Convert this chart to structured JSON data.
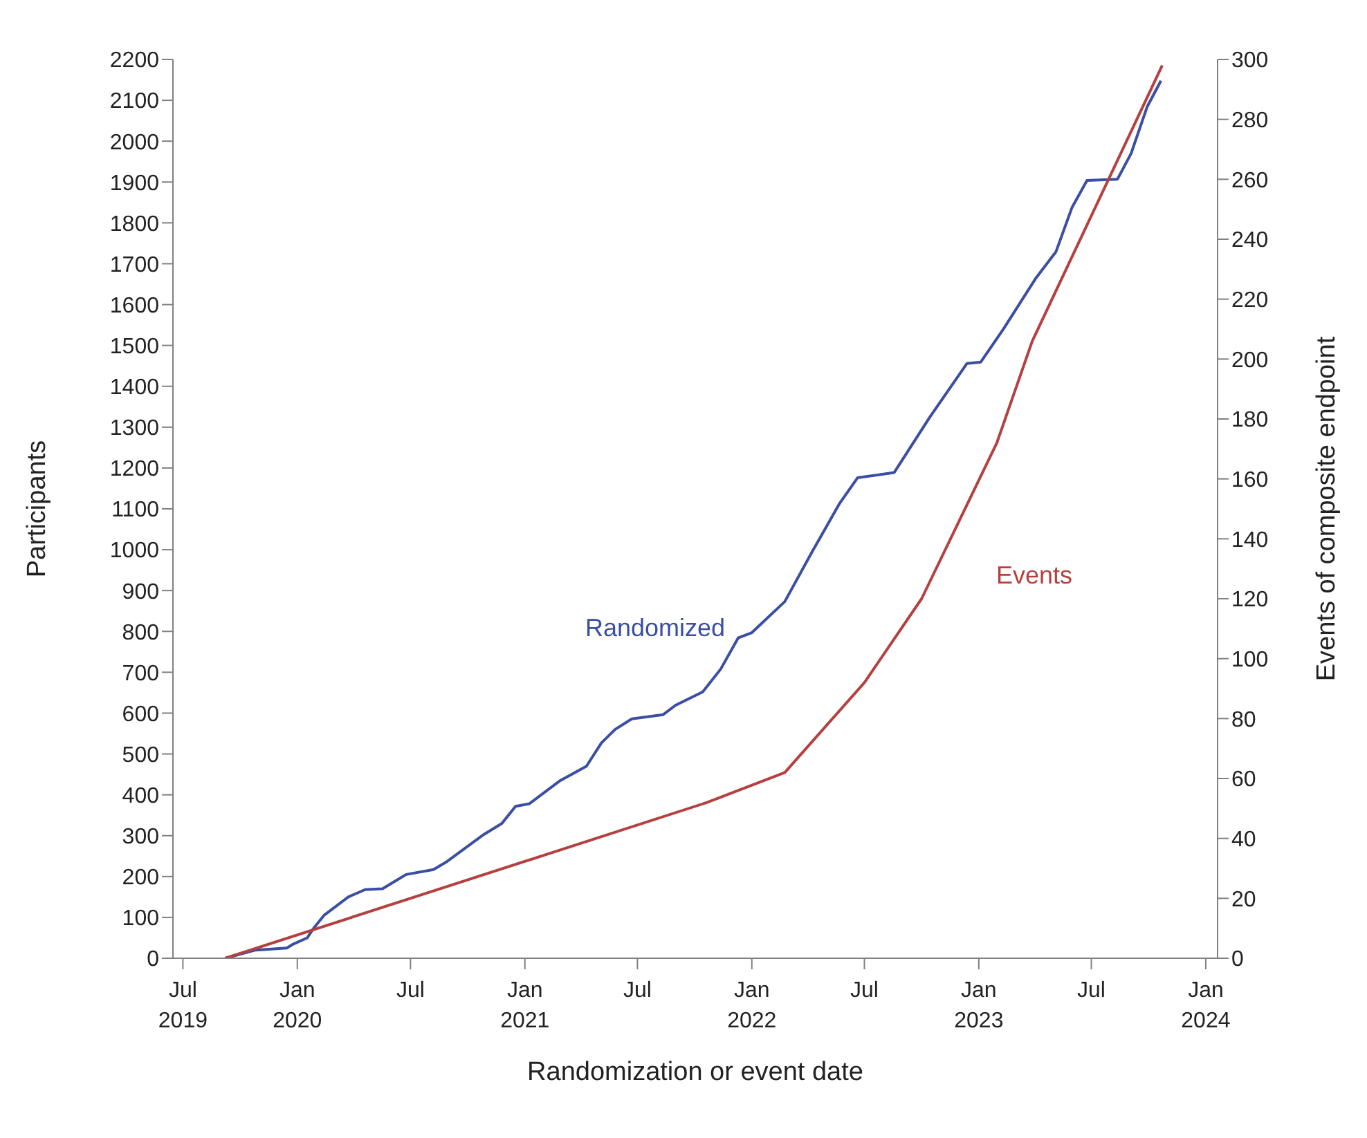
{
  "chart_data": {
    "type": "line",
    "xlabel": "Randomization or event date",
    "ylabel": "Participants",
    "y2label": "Events of composite endpoint",
    "xlim": [
      "2019-06-15",
      "2024-01-20"
    ],
    "xticks": [
      {
        "value": "2019-07-01",
        "label": "Jul\n2019"
      },
      {
        "value": "2020-01-01",
        "label": "Jan\n2020"
      },
      {
        "value": "2020-07-01",
        "label": "Jul"
      },
      {
        "value": "2021-01-01",
        "label": "Jan\n2021"
      },
      {
        "value": "2021-07-01",
        "label": "Jul"
      },
      {
        "value": "2022-01-01",
        "label": "Jan\n2022"
      },
      {
        "value": "2022-07-01",
        "label": "Jul"
      },
      {
        "value": "2023-01-01",
        "label": "Jan\n2023"
      },
      {
        "value": "2023-07-01",
        "label": "Jul"
      },
      {
        "value": "2024-01-01",
        "label": "Jan\n2024"
      }
    ],
    "ylim": [
      0,
      2200
    ],
    "yticks": [
      0,
      100,
      200,
      300,
      400,
      500,
      600,
      700,
      800,
      900,
      1000,
      1100,
      1200,
      1300,
      1400,
      1500,
      1600,
      1700,
      1800,
      1900,
      2000,
      2100,
      2200
    ],
    "y2lim": [
      0,
      300
    ],
    "y2ticks": [
      0,
      20,
      40,
      60,
      80,
      100,
      120,
      140,
      160,
      180,
      200,
      220,
      240,
      260,
      280,
      300
    ],
    "marker": "none",
    "line_style": "solid",
    "series": [
      {
        "name": "Randomized",
        "color": "#3a4ea3",
        "x": [
          "2019-09-07",
          "2019-10-26",
          "2019-12-15",
          "2019-12-26",
          "2020-01-17",
          "2020-01-28",
          "2020-02-13",
          "2020-03-23",
          "2020-04-19",
          "2020-05-17",
          "2020-06-24",
          "2020-08-07",
          "2020-08-29",
          "2020-10-27",
          "2020-11-25",
          "2020-12-17",
          "2021-01-08",
          "2021-02-27",
          "2021-04-10",
          "2021-05-04",
          "2021-05-26",
          "2021-06-22",
          "2021-08-11",
          "2021-08-31",
          "2021-10-14",
          "2021-11-12",
          "2021-12-10",
          "2022-01-01",
          "2022-02-23",
          "2022-04-08",
          "2022-05-22",
          "2022-06-20",
          "2022-08-18",
          "2022-10-14",
          "2022-12-13",
          "2023-01-04",
          "2023-02-10",
          "2023-04-02",
          "2023-05-05",
          "2023-05-31",
          "2023-06-24",
          "2023-08-12",
          "2023-09-03",
          "2023-09-29",
          "2023-10-21"
        ],
        "values": [
          0,
          20,
          25,
          35,
          50,
          75,
          105,
          150,
          168,
          170,
          205,
          217,
          237,
          303,
          330,
          372,
          378,
          435,
          470,
          527,
          560,
          586,
          596,
          619,
          652,
          708,
          784,
          797,
          873,
          995,
          1113,
          1176,
          1189,
          1324,
          1456,
          1459,
          1541,
          1663,
          1729,
          1838,
          1904,
          1907,
          1970,
          2085,
          2148
        ]
      },
      {
        "name": "Events",
        "color": "#b4403f",
        "axis": "y2",
        "x": [
          "2019-09-07",
          "2021-10-21",
          "2022-02-23",
          "2022-07-01",
          "2022-10-01",
          "2023-01-30",
          "2023-03-28",
          "2023-10-23"
        ],
        "values": [
          0,
          52,
          62,
          92,
          120,
          172,
          206,
          298
        ]
      }
    ]
  }
}
